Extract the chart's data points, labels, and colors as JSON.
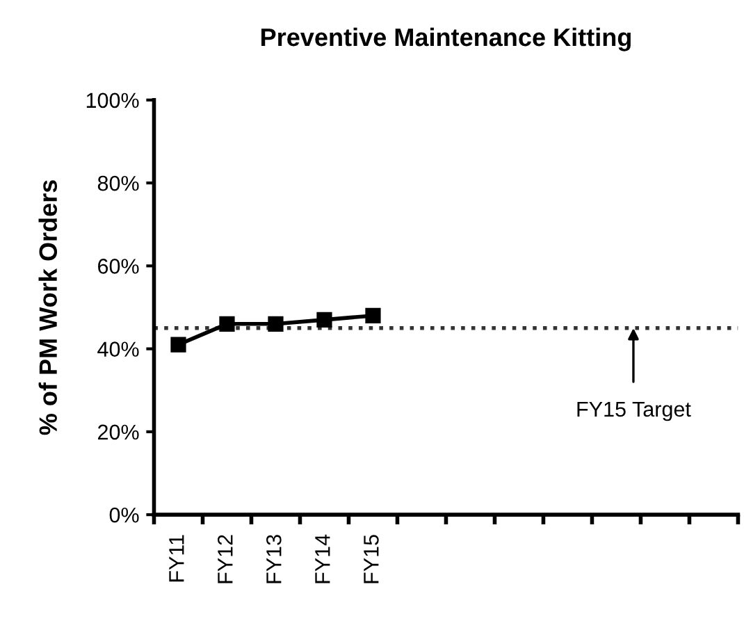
{
  "chart_data": {
    "type": "line",
    "title": "Preventive Maintenance Kitting",
    "ylabel": "% of PM Work Orders",
    "categories": [
      "FY11",
      "FY12",
      "FY13",
      "FY14",
      "FY15",
      null,
      null,
      null,
      null,
      null,
      null,
      null
    ],
    "series": [
      {
        "color": "#000000",
        "values": [
          41,
          46,
          46,
          47,
          48,
          null,
          null,
          null,
          null,
          null,
          null,
          null
        ]
      }
    ],
    "ylim": [
      0,
      100
    ],
    "yticks": [
      {
        "value": 0,
        "label": "0%"
      },
      {
        "value": 20,
        "label": "20%"
      },
      {
        "value": 40,
        "label": "40%"
      },
      {
        "value": 60,
        "label": "60%"
      },
      {
        "value": 80,
        "label": "80%"
      },
      {
        "value": 100,
        "label": "100%"
      }
    ],
    "ref_lines": [
      {
        "axis": "y",
        "value": 45,
        "label": "FY15 Target",
        "color": "#333333",
        "line_style": "dotted"
      }
    ],
    "marker": "square",
    "line_style": "solid",
    "grid": false,
    "legend": false
  }
}
